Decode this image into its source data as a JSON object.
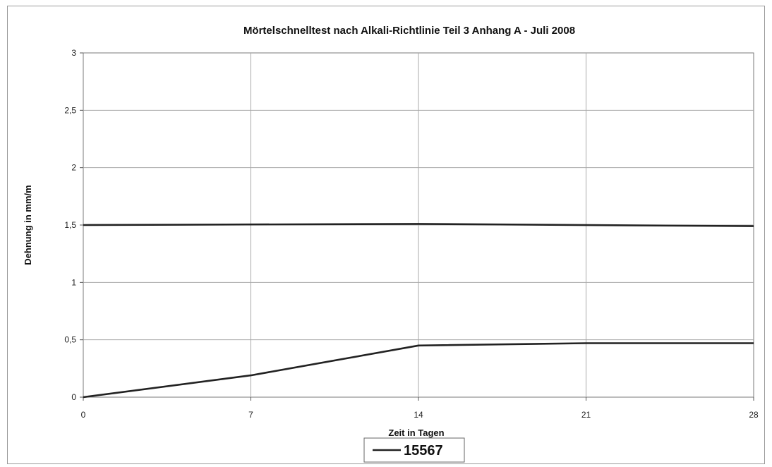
{
  "chart_data": {
    "type": "line",
    "title": "Mörtelschnelltest nach Alkali-Richtlinie Teil 3 Anhang A - Juli 2008",
    "xlabel": "Zeit in Tagen",
    "ylabel": "Dehnung in mm/m",
    "xlim": [
      0,
      28
    ],
    "ylim": [
      0,
      3
    ],
    "x_ticks": [
      0,
      7,
      14,
      21,
      28
    ],
    "y_ticks": [
      0,
      0.5,
      1,
      1.5,
      2,
      2.5,
      3
    ],
    "x_tick_labels": [
      "0",
      "7",
      "14",
      "21",
      "28"
    ],
    "y_tick_labels": [
      "0",
      "0,5",
      "1",
      "1,5",
      "2",
      "2,5",
      "3"
    ],
    "grid": true,
    "legend_position": "bottom-center",
    "series": [
      {
        "name": "15567",
        "x": [
          0,
          7,
          14,
          21,
          28
        ],
        "y": [
          0,
          0.19,
          0.45,
          0.47,
          0.47
        ],
        "color": "#222222"
      },
      {
        "x": [
          0,
          14,
          28
        ],
        "y": [
          1.5,
          1.51,
          1.49
        ],
        "color": "#222222"
      }
    ]
  }
}
